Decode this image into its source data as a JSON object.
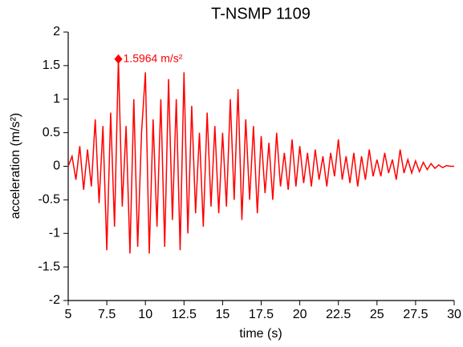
{
  "chart_data": {
    "type": "line",
    "title": "T-NSMP 1109",
    "x_label": "time (s)",
    "y_label": "acceleration (m/s²)",
    "x": [
      5,
      5.25,
      5.5,
      5.75,
      6,
      6.25,
      6.5,
      6.75,
      7,
      7.25,
      7.5,
      7.75,
      8,
      8.25,
      8.5,
      8.75,
      9,
      9.25,
      9.5,
      9.75,
      10,
      10.25,
      10.5,
      10.75,
      11,
      11.25,
      11.5,
      11.75,
      12,
      12.25,
      12.5,
      12.75,
      13,
      13.25,
      13.5,
      13.75,
      14,
      14.25,
      14.5,
      14.75,
      15,
      15.25,
      15.5,
      15.75,
      16,
      16.25,
      16.5,
      16.75,
      17,
      17.25,
      17.5,
      17.75,
      18,
      18.25,
      18.5,
      18.75,
      19,
      19.25,
      19.5,
      19.75,
      20,
      20.25,
      20.5,
      20.75,
      21,
      21.25,
      21.5,
      21.75,
      22,
      22.25,
      22.5,
      22.75,
      23,
      23.25,
      23.5,
      23.75,
      24,
      24.25,
      24.5,
      24.75,
      25,
      25.25,
      25.5,
      25.75,
      26,
      26.25,
      26.5,
      26.75,
      27,
      27.25,
      27.5,
      27.75,
      28,
      28.25,
      28.5,
      28.75,
      29,
      29.25,
      29.5,
      29.75,
      30
    ],
    "series": [
      {
        "color": "#ff0000",
        "values": [
          0,
          0.15,
          -0.2,
          0.3,
          -0.35,
          0.25,
          -0.3,
          0.7,
          -0.55,
          0.6,
          -1.25,
          0.8,
          -0.9,
          1.5964,
          -0.6,
          0.6,
          -1.3,
          1.0,
          -1.2,
          0.5,
          1.4,
          -1.3,
          0.7,
          -0.9,
          1.0,
          -1.2,
          1.3,
          -0.8,
          1.0,
          -1.25,
          1.4,
          -1.0,
          0.9,
          -0.7,
          0.5,
          -0.9,
          0.8,
          -0.6,
          0.6,
          -0.7,
          0.5,
          -0.6,
          1.0,
          -0.5,
          1.15,
          -0.8,
          0.7,
          -0.5,
          0.6,
          -0.7,
          0.45,
          -0.4,
          0.35,
          -0.5,
          0.5,
          -0.3,
          0.2,
          -0.35,
          0.4,
          -0.3,
          0.3,
          -0.25,
          0.2,
          -0.3,
          0.25,
          -0.2,
          0.15,
          -0.3,
          0.2,
          -0.15,
          0.4,
          -0.2,
          0.15,
          -0.25,
          0.2,
          -0.3,
          0.15,
          -0.2,
          0.25,
          -0.15,
          0.1,
          -0.15,
          0.2,
          -0.1,
          0.1,
          -0.2,
          0.25,
          -0.1,
          0.1,
          -0.1,
          0.08,
          -0.08,
          0.06,
          -0.05,
          0.04,
          -0.03,
          0.02,
          -0.02,
          0.01,
          0,
          0
        ]
      }
    ],
    "annotation": {
      "x": 8.25,
      "y": 1.5964,
      "label": "1.5964 m/s²",
      "color": "#ff0000"
    },
    "xlim": [
      5,
      30
    ],
    "xticks": [
      5,
      7.5,
      10,
      12.5,
      15,
      17.5,
      20,
      22.5,
      25,
      27.5,
      30
    ],
    "ylim": [
      -2,
      2
    ],
    "yticks": [
      -2,
      -1.5,
      -1,
      -0.5,
      0,
      0.5,
      1,
      1.5,
      2
    ]
  }
}
